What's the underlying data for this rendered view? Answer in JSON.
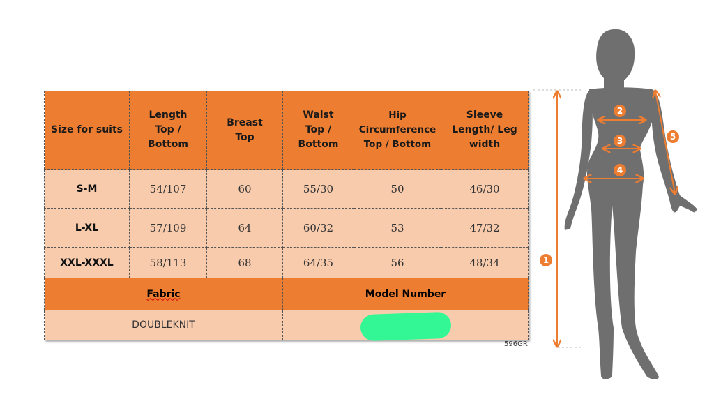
{
  "table": {
    "headers": [
      "Size for suits",
      "Length Top / Bottom",
      "Breast Top",
      "Waist Top / Bottom",
      "Hip Circumference Top / Bottom",
      "Sleeve Length/ Leg width"
    ],
    "rows": [
      [
        "S-M",
        "54/107",
        "60",
        "55/30",
        "50",
        "46/30"
      ],
      [
        "L-XL",
        "57/109",
        "64",
        "60/32",
        "53",
        "47/32"
      ],
      [
        "XXL-XXXL",
        "58/113",
        "68",
        "64/35",
        "56",
        "48/34"
      ]
    ],
    "footer": {
      "fabric_label": "Fabric",
      "model_label": "Model Number",
      "fabric_value": "DOUBLEKNIT",
      "model_value": ""
    },
    "header_color": "#ed7d31",
    "body_color": "#f8cbad"
  },
  "code": "596GR",
  "figure": {
    "markers": [
      "1",
      "2",
      "3",
      "4",
      "5"
    ],
    "marker_color": "#ed7d31",
    "silhouette_color": "#6f6f6f"
  }
}
